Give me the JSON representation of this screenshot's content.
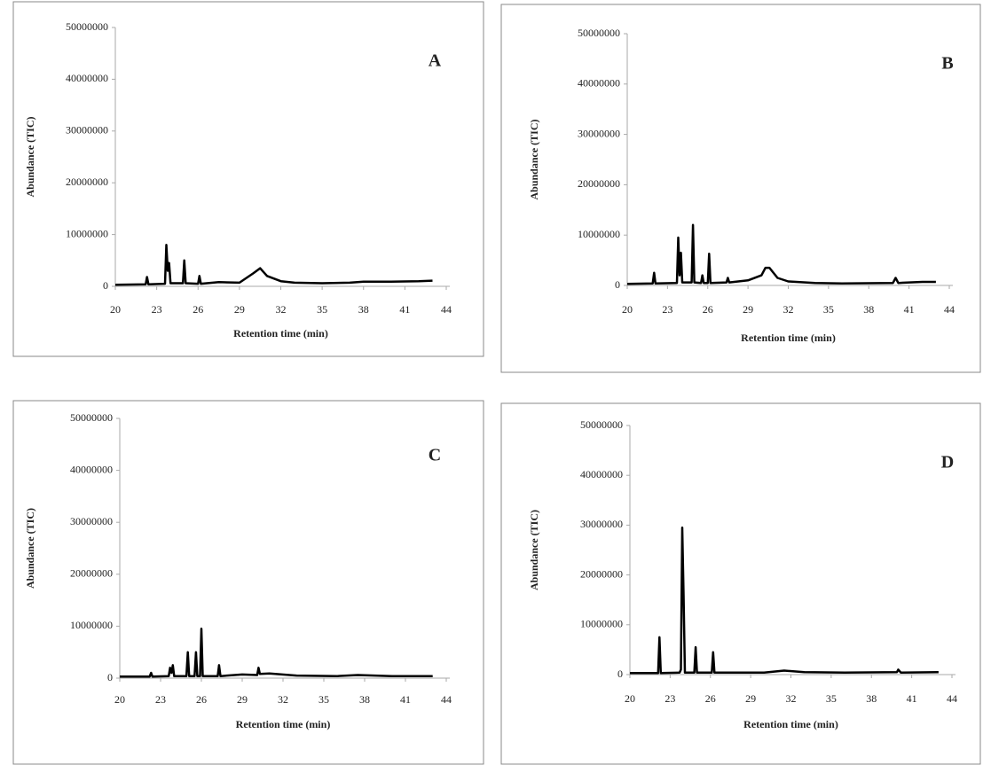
{
  "chart_data": [
    {
      "type": "line",
      "annotation": "A",
      "x_label": "Retention time (min)",
      "y_label": "Abundance (TIC)",
      "xlim": [
        20,
        44
      ],
      "xticks": [
        20,
        23,
        26,
        29,
        32,
        35,
        38,
        41,
        44
      ],
      "ylim": [
        0,
        50000000
      ],
      "yticks": [
        0,
        10000000,
        20000000,
        30000000,
        40000000,
        50000000
      ],
      "x": [
        20,
        22.2,
        22.3,
        22.4,
        23.6,
        23.7,
        23.8,
        23.9,
        24.0,
        24.9,
        25.0,
        25.1,
        26.0,
        26.1,
        26.2,
        27.5,
        29.0,
        30.0,
        30.5,
        31.0,
        32.0,
        33.0,
        35.0,
        37.0,
        38.0,
        40.0,
        42.0,
        43.0
      ],
      "series": [
        {
          "color": "#000000",
          "values": [
            300000,
            400000,
            1800000,
            400000,
            500000,
            8000000,
            3000000,
            4500000,
            600000,
            600000,
            5000000,
            600000,
            500000,
            2000000,
            500000,
            800000,
            700000,
            2500000,
            3500000,
            2000000,
            1000000,
            700000,
            600000,
            700000,
            900000,
            900000,
            1000000,
            1100000
          ]
        }
      ]
    },
    {
      "type": "line",
      "annotation": "B",
      "x_label": "Retention time (min)",
      "y_label": "Abundance (TIC)",
      "xlim": [
        20,
        44
      ],
      "xticks": [
        20,
        23,
        26,
        29,
        32,
        35,
        38,
        41,
        44
      ],
      "ylim": [
        0,
        50000000
      ],
      "yticks": [
        0,
        10000000,
        20000000,
        30000000,
        40000000,
        50000000
      ],
      "x": [
        20,
        21.9,
        22.0,
        22.1,
        23.7,
        23.8,
        23.9,
        24.0,
        24.1,
        24.8,
        24.9,
        25.0,
        25.5,
        25.6,
        25.7,
        26.0,
        26.1,
        26.2,
        27.4,
        27.5,
        27.6,
        29.0,
        30.0,
        30.3,
        30.6,
        31.2,
        32.0,
        34.0,
        36.0,
        39.8,
        40.0,
        40.2,
        42.0,
        43.0
      ],
      "series": [
        {
          "color": "#000000",
          "values": [
            300000,
            400000,
            2500000,
            400000,
            500000,
            9500000,
            2000000,
            6500000,
            600000,
            600000,
            12000000,
            600000,
            500000,
            2000000,
            500000,
            500000,
            6300000,
            500000,
            600000,
            1500000,
            600000,
            1000000,
            2000000,
            3500000,
            3500000,
            1500000,
            800000,
            500000,
            400000,
            500000,
            1500000,
            500000,
            700000,
            700000
          ]
        }
      ]
    },
    {
      "type": "line",
      "annotation": "C",
      "x_label": "Retention time (min)",
      "y_label": "Abundance (TIC)",
      "xlim": [
        20,
        44
      ],
      "xticks": [
        20,
        23,
        26,
        29,
        32,
        35,
        38,
        41,
        44
      ],
      "ylim": [
        0,
        50000000
      ],
      "yticks": [
        0,
        10000000,
        20000000,
        30000000,
        40000000,
        50000000
      ],
      "x": [
        20,
        22.2,
        22.3,
        22.4,
        23.6,
        23.7,
        23.8,
        23.9,
        24.0,
        24.9,
        25.0,
        25.1,
        25.5,
        25.6,
        25.7,
        25.9,
        26.0,
        26.1,
        27.2,
        27.3,
        27.4,
        29.0,
        30.1,
        30.2,
        30.3,
        31.0,
        33.0,
        36.0,
        37.5,
        40.0,
        43.0
      ],
      "series": [
        {
          "color": "#000000",
          "values": [
            300000,
            300000,
            1000000,
            300000,
            400000,
            2000000,
            1000000,
            2500000,
            400000,
            400000,
            5000000,
            400000,
            400000,
            5000000,
            400000,
            400000,
            9500000,
            400000,
            400000,
            2500000,
            400000,
            700000,
            600000,
            2000000,
            800000,
            900000,
            500000,
            400000,
            600000,
            400000,
            400000
          ]
        }
      ]
    },
    {
      "type": "line",
      "annotation": "D",
      "x_label": "Retention time (min)",
      "y_label": "Abundance (TIC)",
      "xlim": [
        20,
        44
      ],
      "xticks": [
        20,
        23,
        26,
        29,
        32,
        35,
        38,
        41,
        44
      ],
      "ylim": [
        0,
        50000000
      ],
      "yticks": [
        0,
        10000000,
        20000000,
        30000000,
        40000000,
        50000000
      ],
      "x": [
        20,
        22.1,
        22.2,
        22.3,
        23.7,
        23.8,
        23.9,
        24.0,
        24.1,
        24.8,
        24.9,
        25.0,
        26.1,
        26.2,
        26.3,
        28.0,
        30.0,
        31.5,
        33.0,
        36.0,
        39.9,
        40.0,
        40.2,
        43.0
      ],
      "series": [
        {
          "color": "#000000",
          "values": [
            300000,
            300000,
            7500000,
            300000,
            400000,
            1000000,
            29500000,
            16000000,
            400000,
            400000,
            5500000,
            400000,
            400000,
            4500000,
            400000,
            400000,
            400000,
            800000,
            500000,
            400000,
            500000,
            1000000,
            400000,
            500000
          ]
        }
      ]
    }
  ]
}
